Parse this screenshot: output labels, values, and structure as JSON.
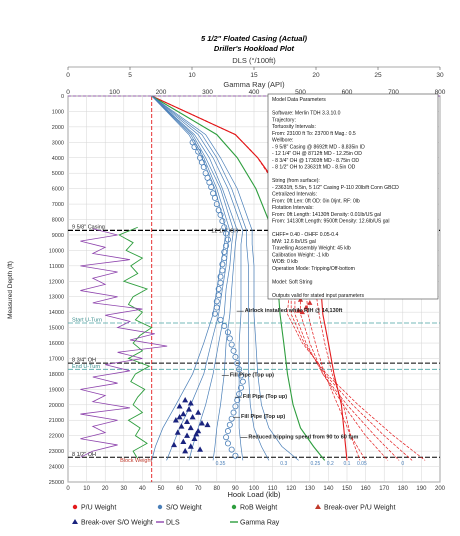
{
  "chart_data": {
    "type": "line",
    "title": "5 1/2\" Floated Casing (Actual)",
    "subtitle": "Driller's Hookload Plot",
    "xlabel": "Hook Load (klb)",
    "ylabel": "Measured Depth (ft)",
    "xlim": [
      0,
      200
    ],
    "ylim": [
      25000,
      0
    ],
    "x_ticks": [
      "0",
      "10",
      "20",
      "30",
      "40",
      "50",
      "60",
      "70",
      "80",
      "90",
      "100",
      "110",
      "120",
      "130",
      "140",
      "150",
      "160",
      "170",
      "180",
      "190",
      "200"
    ],
    "y_ticks": [
      "0",
      "1000",
      "2000",
      "3000",
      "4000",
      "5000",
      "6000",
      "7000",
      "8000",
      "9000",
      "10000",
      "11000",
      "12000",
      "13000",
      "14000",
      "15000",
      "16000",
      "17000",
      "18000",
      "19000",
      "20000",
      "21000",
      "22000",
      "23000",
      "24000",
      "25000"
    ],
    "top_axis_dls": {
      "label": "DLS (°/100ft)",
      "ticks": [
        "0",
        "5",
        "10",
        "15",
        "20",
        "25",
        "30"
      ],
      "range": [
        0,
        30
      ]
    },
    "top_axis_gr": {
      "label": "Gamma Ray (API)",
      "ticks": [
        "0",
        "100",
        "200",
        "300",
        "400",
        "500",
        "600",
        "700",
        "800"
      ],
      "range": [
        0,
        800
      ]
    },
    "legend": [
      {
        "name": "P/U Weight",
        "color": "#e31a1c",
        "marker": "dot"
      },
      {
        "name": "S/O Weight",
        "color": "#4a7fb8",
        "marker": "dot"
      },
      {
        "name": "RoB Weight",
        "color": "#2e9e3e",
        "marker": "dot"
      },
      {
        "name": "Break-over P/U Weight",
        "color": "#c0392b",
        "marker": "triangle"
      },
      {
        "name": "Break-over S/O Weight",
        "color": "#1a237e",
        "marker": "triangle"
      },
      {
        "name": "DLS",
        "color": "#8e44ad",
        "marker": "line"
      },
      {
        "name": "Gamma Ray",
        "color": "#2e9e3e",
        "marker": "line"
      }
    ],
    "info_box": [
      "Model Data Parameters",
      "",
      "Software: Merlin TDH 3.3.10.0",
      "Trajectory:",
      "Tortuosity Intervals:",
      "From: 23100 ft To: 23700 ft Mag.: 0.5",
      "Wellbore:",
      "- 9 5/8\" Casing @ 8692ft MD - 8.835in ID",
      "- 12 1/4\" OH @ 8712ft MD - 12.25in OD",
      "- 8 3/4\" OH @ 17303ft MD - 8.75in OD",
      "- 8 1/2\" OH to 23631ft MD - 8.5in OD",
      "",
      "String (from surface):",
      "- 23631ft, 5.5in, 5 1/2\" Casing P-110 20lb/ft Conn GBCD",
      "Cetralized Intervals:",
      "From: 0ft Len: 0ft OD: 0in 0/jnt. RF: 0lb",
      "Flotation Intervals:",
      "From: 0ft Length: 14130ft Density: 0.01lb/US gal",
      "From: 14130ft Length: 9500ft Density: 12.6lb/US gal",
      "",
      "CHFF= 0.40 - OHFF 0.05-0.4",
      "MW: 12.6 lb/US gal",
      "Travelling Assembly Weight: 45 klb",
      "Calibration Weight: -1 klb",
      "WOB: 0 klb",
      "Operation Mode: Tripping/Off-bottom",
      "",
      "Model: Soft String",
      "",
      "Outputs valid for stated input parameters"
    ],
    "depth_markers": [
      {
        "label": "9 5/8\" Casing",
        "depth": 8692,
        "style": "black-dashed"
      },
      {
        "label": "12 1/4\" OH",
        "depth": 8712,
        "style": "black-dashed"
      },
      {
        "label": "Start U-Turn",
        "depth": 14700,
        "style": "teal-dashed"
      },
      {
        "label": "8 3/4\" OH",
        "depth": 17303,
        "style": "black-dashed"
      },
      {
        "label": "End U-Turn",
        "depth": 17700,
        "style": "teal-dashed"
      },
      {
        "label": "8 1/2\" OH",
        "depth": 23400,
        "style": "black-dashed"
      }
    ],
    "annotations": [
      {
        "text": "Airlock installed while RIH @ 14,130ft",
        "x": 95,
        "y": 14130
      },
      {
        "text": "Fill Pipe (Top up)",
        "x": 87,
        "y": 18300
      },
      {
        "text": "Fill Pipe (Top up)",
        "x": 94,
        "y": 19700
      },
      {
        "text": "Fill Pipe (Top up)",
        "x": 93,
        "y": 21000
      },
      {
        "text": "Reduced tripping speed from 90 to 60 fpm",
        "x": 97,
        "y": 22300
      },
      {
        "text": "Block Weight",
        "x": 28,
        "y": 23700
      }
    ],
    "ff_labels": [
      "0.35",
      "0.3",
      "0.25",
      "0.2",
      "0.1",
      "0.05",
      "0"
    ],
    "block_weight_klb": 45,
    "red_line_top": {
      "x": 45,
      "depth": 0
    },
    "series": [
      {
        "name": "P/U Weight",
        "color": "#e31a1c",
        "x": [
          45,
          90,
          102,
          114,
          128,
          130,
          133,
          136,
          137,
          140,
          143,
          147,
          150
        ],
        "y": [
          0,
          2500,
          4000,
          6000,
          8700,
          9500,
          11000,
          12500,
          14130,
          16000,
          18000,
          20000,
          23600
        ]
      },
      {
        "name": "P/U Weight FF 0.05",
        "color": "#e31a1c",
        "x": [
          45,
          90,
          102,
          113,
          125,
          128,
          130,
          133,
          135,
          138,
          142,
          148,
          152,
          157
        ],
        "y": [
          0,
          2500,
          4000,
          6000,
          8700,
          9600,
          11000,
          12500,
          14130,
          16000,
          18000,
          20000,
          22000,
          23600
        ]
      },
      {
        "name": "P/U Weight FF 0.1",
        "color": "#e31a1c",
        "x": [
          45,
          90,
          102,
          113,
          124,
          125,
          126,
          128,
          129,
          133,
          138,
          145,
          152,
          160
        ],
        "y": [
          0,
          2500,
          4000,
          6000,
          8700,
          9600,
          11000,
          12500,
          14130,
          16000,
          18000,
          20000,
          22000,
          23600
        ]
      },
      {
        "name": "P/U Weight FF 0.2",
        "color": "#e31a1c",
        "x": [
          45,
          90,
          102,
          113,
          124,
          124,
          124,
          125,
          125,
          130,
          137,
          148,
          160,
          172
        ],
        "y": [
          0,
          2500,
          4000,
          6000,
          8700,
          9600,
          11000,
          12500,
          14130,
          16000,
          18000,
          20000,
          22000,
          23600
        ]
      },
      {
        "name": "P/U Weight FF 0.25",
        "color": "#e31a1c",
        "x": [
          45,
          90,
          102,
          113,
          124,
          123,
          122,
          122,
          122,
          128,
          137,
          150,
          165,
          178
        ],
        "y": [
          0,
          2500,
          4000,
          6000,
          8700,
          9600,
          11000,
          12500,
          14130,
          16000,
          18000,
          20000,
          22000,
          23600
        ]
      },
      {
        "name": "P/U Weight FF 0.3",
        "color": "#e31a1c",
        "x": [
          45,
          90,
          102,
          113,
          124,
          122,
          121,
          120,
          120,
          127,
          138,
          153,
          170,
          185
        ],
        "y": [
          0,
          2500,
          4000,
          6000,
          8700,
          9600,
          11000,
          12500,
          14130,
          16000,
          18000,
          20000,
          22000,
          23600
        ]
      },
      {
        "name": "P/U Weight FF 0.35",
        "color": "#e31a1c",
        "x": [
          45,
          90,
          102,
          113,
          124,
          121,
          120,
          119,
          118,
          126,
          139,
          156,
          175,
          192
        ],
        "y": [
          0,
          2500,
          4000,
          6000,
          8700,
          9600,
          11000,
          12500,
          14130,
          16000,
          18000,
          20000,
          22000,
          23600
        ]
      },
      {
        "name": "RoB Weight",
        "color": "#2e9e3e",
        "x": [
          45,
          80,
          91,
          101,
          110,
          111,
          112,
          113,
          114,
          116,
          118,
          121,
          125,
          132,
          138
        ],
        "y": [
          0,
          2500,
          4000,
          6000,
          8700,
          9600,
          11000,
          12500,
          14130,
          16000,
          18000,
          20000,
          21500,
          22700,
          23600
        ]
      },
      {
        "name": "S/O Weight FF 0",
        "color": "#4a7fb8",
        "x": [
          45,
          74,
          82,
          91,
          99,
          99,
          100,
          100,
          100,
          101,
          102,
          104,
          108,
          115,
          124
        ],
        "y": [
          0,
          2500,
          4000,
          6000,
          8700,
          9600,
          11000,
          12500,
          14130,
          16000,
          18000,
          20000,
          21500,
          22700,
          23600
        ]
      },
      {
        "name": "S/O Weight FF 0.05",
        "color": "#4a7fb8",
        "x": [
          45,
          72,
          80,
          88,
          96,
          96,
          97,
          97,
          97,
          97,
          97,
          98,
          100,
          104,
          108
        ],
        "y": [
          0,
          2500,
          4000,
          6000,
          8700,
          9600,
          11000,
          12500,
          14130,
          16000,
          18000,
          20000,
          21500,
          22700,
          23600
        ]
      },
      {
        "name": "S/O Weight FF 0.1",
        "color": "#4a7fb8",
        "x": [
          45,
          70,
          78,
          86,
          94,
          93,
          93,
          93,
          93,
          92,
          92,
          92,
          92,
          93,
          94
        ],
        "y": [
          0,
          2500,
          4000,
          6000,
          8700,
          9600,
          11000,
          12500,
          14130,
          16000,
          18000,
          20000,
          21500,
          22700,
          23600
        ]
      },
      {
        "name": "S/O Weight FF 0.2",
        "color": "#4a7fb8",
        "x": [
          45,
          68,
          76,
          83,
          91,
          90,
          89,
          88,
          87,
          85,
          84,
          82,
          80,
          79,
          78
        ],
        "y": [
          0,
          2500,
          4000,
          6000,
          8700,
          9600,
          11000,
          12500,
          14130,
          16000,
          18000,
          20000,
          21500,
          22700,
          23600
        ]
      },
      {
        "name": "S/O Weight FF 0.25",
        "color": "#4a7fb8",
        "x": [
          45,
          67,
          74,
          82,
          89,
          88,
          87,
          85,
          84,
          81,
          78,
          74,
          70,
          67,
          65
        ],
        "y": [
          0,
          2500,
          4000,
          6000,
          8700,
          9600,
          11000,
          12500,
          14130,
          16000,
          18000,
          20000,
          21500,
          22700,
          23600
        ]
      },
      {
        "name": "S/O Weight FF 0.3",
        "color": "#4a7fb8",
        "x": [
          45,
          66,
          73,
          80,
          87,
          86,
          85,
          83,
          81,
          77,
          73,
          66,
          60,
          56,
          53
        ],
        "y": [
          0,
          2500,
          4000,
          6000,
          8700,
          9600,
          11000,
          12500,
          14130,
          16000,
          18000,
          20000,
          21500,
          22700,
          23600
        ]
      },
      {
        "name": "S/O Weight FF 0.35",
        "color": "#4a7fb8",
        "x": [
          45,
          65,
          72,
          79,
          85,
          84,
          82,
          80,
          78,
          73,
          67,
          58,
          51,
          47,
          45
        ],
        "y": [
          0,
          2500,
          4000,
          6000,
          8700,
          9600,
          11000,
          12500,
          14130,
          16000,
          18000,
          20000,
          21500,
          22700,
          23600
        ]
      }
    ],
    "so_points": [
      [
        67,
        3000
      ],
      [
        68,
        3300
      ],
      [
        70,
        3600
      ],
      [
        71,
        4000
      ],
      [
        72,
        4300
      ],
      [
        73,
        4600
      ],
      [
        74,
        5000
      ],
      [
        75,
        5300
      ],
      [
        76,
        5600
      ],
      [
        77,
        5900
      ],
      [
        78,
        6300
      ],
      [
        79,
        6600
      ],
      [
        80,
        7000
      ],
      [
        81,
        7400
      ],
      [
        82,
        7700
      ],
      [
        83,
        8100
      ],
      [
        84,
        8500
      ],
      [
        85,
        8900
      ],
      [
        86,
        9300
      ],
      [
        85,
        9700
      ],
      [
        84,
        10100
      ],
      [
        84,
        10500
      ],
      [
        83,
        10900
      ],
      [
        83,
        11300
      ],
      [
        82,
        11700
      ],
      [
        82,
        12100
      ],
      [
        81,
        12500
      ],
      [
        81,
        12900
      ],
      [
        80,
        13300
      ],
      [
        80,
        13700
      ],
      [
        79,
        14100
      ],
      [
        82,
        14500
      ],
      [
        84,
        14900
      ],
      [
        86,
        15300
      ],
      [
        87,
        15700
      ],
      [
        88,
        16100
      ],
      [
        89,
        16500
      ],
      [
        90,
        16900
      ],
      [
        91,
        17300
      ],
      [
        92,
        17700
      ],
      [
        93,
        18100
      ],
      [
        94,
        18500
      ],
      [
        93,
        18900
      ],
      [
        92,
        19300
      ],
      [
        91,
        19700
      ],
      [
        90,
        20100
      ],
      [
        89,
        20500
      ],
      [
        88,
        20900
      ],
      [
        87,
        21300
      ],
      [
        86,
        21700
      ],
      [
        85,
        22100
      ],
      [
        86,
        22500
      ],
      [
        88,
        22900
      ],
      [
        90,
        23300
      ]
    ],
    "breakover_so": [
      [
        63,
        19700
      ],
      [
        66,
        19900
      ],
      [
        60,
        20100
      ],
      [
        65,
        20300
      ],
      [
        70,
        20500
      ],
      [
        62,
        20600
      ],
      [
        67,
        20800
      ],
      [
        58,
        21000
      ],
      [
        64,
        21100
      ],
      [
        72,
        21200
      ],
      [
        61,
        21400
      ],
      [
        66,
        21500
      ],
      [
        70,
        21700
      ],
      [
        59,
        21800
      ],
      [
        64,
        22000
      ],
      [
        68,
        22200
      ],
      [
        62,
        22400
      ],
      [
        57,
        22600
      ],
      [
        66,
        22700
      ],
      [
        71,
        22900
      ],
      [
        63,
        23000
      ],
      [
        60,
        20800
      ],
      [
        69,
        21900
      ],
      [
        75,
        21300
      ]
    ],
    "breakover_pu": [
      [
        130,
        10000
      ],
      [
        133,
        10400
      ],
      [
        128,
        10800
      ],
      [
        131,
        11200
      ],
      [
        126,
        11600
      ],
      [
        129,
        12000
      ],
      [
        132,
        12400
      ],
      [
        127,
        12800
      ],
      [
        125,
        13200
      ],
      [
        130,
        13400
      ],
      [
        128,
        13700
      ],
      [
        126,
        14000
      ],
      [
        131,
        10600
      ],
      [
        127,
        11400
      ],
      [
        133,
        12600
      ],
      [
        124,
        13900
      ],
      [
        129,
        9800
      ],
      [
        131,
        9600
      ]
    ],
    "gamma_ray_api": {
      "y": [
        8500,
        9000,
        9500,
        10000,
        10500,
        11000,
        11500,
        12000,
        12500,
        13000,
        13500,
        14000,
        14500,
        15000,
        15500,
        16000,
        16500,
        17000,
        17500,
        18000,
        18500,
        19000,
        19500,
        20000,
        20500,
        21000,
        21500,
        22000,
        22500,
        23000,
        23500
      ],
      "v": [
        150,
        110,
        140,
        125,
        160,
        135,
        150,
        120,
        170,
        140,
        130,
        160,
        145,
        180,
        155,
        140,
        160,
        130,
        175,
        145,
        135,
        165,
        150,
        140,
        160,
        130,
        155,
        145,
        170,
        140,
        150
      ]
    },
    "dls_deg": {
      "y": [
        8600,
        9000,
        9400,
        9800,
        10200,
        10600,
        11000,
        11400,
        11800,
        12200,
        12600,
        13000,
        13400,
        13800,
        14200,
        14600,
        15000,
        15400,
        15800,
        16200,
        16600,
        17000,
        17400,
        17800,
        18200,
        18600,
        19000,
        19400,
        19800,
        20200,
        20600,
        21000,
        21400,
        21800,
        22200,
        22600,
        23000,
        23400
      ],
      "v": [
        2,
        4,
        1,
        3,
        2,
        5,
        1,
        4,
        2,
        3,
        1,
        4,
        2,
        6,
        3,
        5,
        4,
        7,
        5,
        8,
        4,
        6,
        3,
        5,
        2,
        4,
        1,
        3,
        2,
        5,
        1,
        4,
        2,
        3,
        1,
        4,
        2,
        1
      ]
    }
  }
}
